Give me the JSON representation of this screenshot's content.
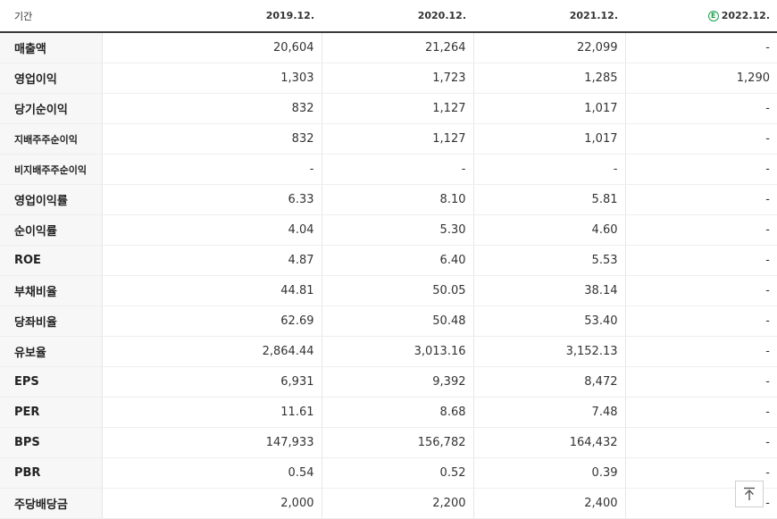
{
  "header": {
    "period_label": "기간",
    "years": [
      "2019.12.",
      "2020.12.",
      "2021.12.",
      "2022.12."
    ],
    "estimate_badge": "E"
  },
  "rows": [
    {
      "label": "매출액",
      "values": [
        "20,604",
        "21,264",
        "22,099",
        "-"
      ]
    },
    {
      "label": "영업이익",
      "values": [
        "1,303",
        "1,723",
        "1,285",
        "1,290"
      ]
    },
    {
      "label": "당기순이익",
      "values": [
        "832",
        "1,127",
        "1,017",
        "-"
      ]
    },
    {
      "label": "지배주주순이익",
      "values": [
        "832",
        "1,127",
        "1,017",
        "-"
      ]
    },
    {
      "label": "비지배주주순이익",
      "values": [
        "-",
        "-",
        "-",
        "-"
      ]
    },
    {
      "label": "영업이익률",
      "values": [
        "6.33",
        "8.10",
        "5.81",
        "-"
      ]
    },
    {
      "label": "순이익률",
      "values": [
        "4.04",
        "5.30",
        "4.60",
        "-"
      ]
    },
    {
      "label": "ROE",
      "values": [
        "4.87",
        "6.40",
        "5.53",
        "-"
      ]
    },
    {
      "label": "부채비율",
      "values": [
        "44.81",
        "50.05",
        "38.14",
        "-"
      ]
    },
    {
      "label": "당좌비율",
      "values": [
        "62.69",
        "50.48",
        "53.40",
        "-"
      ]
    },
    {
      "label": "유보율",
      "values": [
        "2,864.44",
        "3,013.16",
        "3,152.13",
        "-"
      ]
    },
    {
      "label": "EPS",
      "values": [
        "6,931",
        "9,392",
        "8,472",
        "-"
      ]
    },
    {
      "label": "PER",
      "values": [
        "11.61",
        "8.68",
        "7.48",
        "-"
      ]
    },
    {
      "label": "BPS",
      "values": [
        "147,933",
        "156,782",
        "164,432",
        "-"
      ]
    },
    {
      "label": "PBR",
      "values": [
        "0.54",
        "0.52",
        "0.39",
        "-"
      ]
    },
    {
      "label": "주당배당금",
      "values": [
        "2,000",
        "2,200",
        "2,400",
        "-"
      ]
    }
  ],
  "scroll_top_icon": "arrow-up-to-top-icon"
}
